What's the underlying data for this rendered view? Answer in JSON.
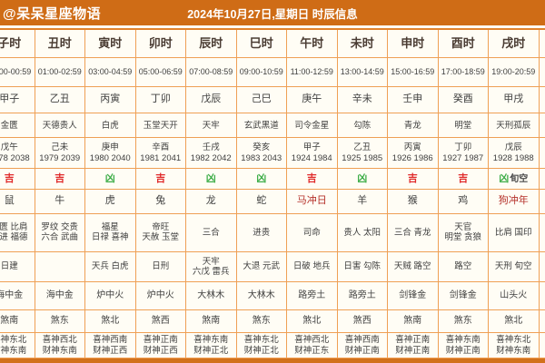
{
  "header": {
    "watermark": "@呆呆星座物语",
    "title": "2024年10月27日,星期日 时辰信息"
  },
  "colors": {
    "header_bg": "#cf6c16",
    "grid_border": "#efa055",
    "cell_bg": "#fffdf5",
    "auspicious_red": "#e02a2a",
    "inauspicious_green": "#3fae49",
    "clash_text_red": "#b5312a",
    "text_dark": "#3f3f3f"
  },
  "row_meanings": [
    "hour-name",
    "time-range",
    "hour-pillar",
    "duty-star",
    "clash-pillar-years",
    "luck",
    "zodiac",
    "auspicious-gods",
    "inauspicious-gods",
    "nayin-element",
    "sha-direction",
    "gods-directions"
  ],
  "columns": [
    {
      "hour": "子时",
      "time": "00:00-00:59",
      "ganzhi": "甲子",
      "star": "金匮",
      "clash": [
        "戊午",
        "1978 2038"
      ],
      "luck": {
        "text": "吉",
        "type": "good",
        "suffix": ""
      },
      "zodiac": {
        "text": "鼠",
        "clash": false
      },
      "jishen": [
        "金匮 比肩",
        "大进 福德"
      ],
      "xiongshen": [
        "日建"
      ],
      "nayin": "海中金",
      "sha": "煞南",
      "dir": [
        "喜神东北",
        "财神东南"
      ]
    },
    {
      "hour": "丑时",
      "time": "01:00-02:59",
      "ganzhi": "乙丑",
      "star": "天德贵人",
      "clash": [
        "己未",
        "1979 2039"
      ],
      "luck": {
        "text": "吉",
        "type": "good",
        "suffix": ""
      },
      "zodiac": {
        "text": "牛",
        "clash": false
      },
      "jishen": [
        "罗纹 交贵",
        "六合 武曲"
      ],
      "xiongshen": [
        ""
      ],
      "nayin": "海中金",
      "sha": "煞东",
      "dir": [
        "喜神西北",
        "财神东南"
      ]
    },
    {
      "hour": "寅时",
      "time": "03:00-04:59",
      "ganzhi": "丙寅",
      "star": "白虎",
      "clash": [
        "庚申",
        "1980 2040"
      ],
      "luck": {
        "text": "凶",
        "type": "bad",
        "suffix": ""
      },
      "zodiac": {
        "text": "虎",
        "clash": false
      },
      "jishen": [
        "福星",
        "日禄 喜神"
      ],
      "xiongshen": [
        "天兵 白虎"
      ],
      "nayin": "炉中火",
      "sha": "煞北",
      "dir": [
        "喜神西南",
        "财神正西"
      ]
    },
    {
      "hour": "卯时",
      "time": "05:00-06:59",
      "ganzhi": "丁卯",
      "star": "玉堂天开",
      "clash": [
        "辛酉",
        "1981 2041"
      ],
      "luck": {
        "text": "吉",
        "type": "good",
        "suffix": ""
      },
      "zodiac": {
        "text": "兔",
        "clash": false
      },
      "jishen": [
        "帝旺",
        "天赦 玉堂"
      ],
      "xiongshen": [
        "日刑"
      ],
      "nayin": "炉中火",
      "sha": "煞西",
      "dir": [
        "喜神正南",
        "财神正西"
      ]
    },
    {
      "hour": "辰时",
      "time": "07:00-08:59",
      "ganzhi": "戊辰",
      "star": "天牢",
      "clash": [
        "壬戌",
        "1982 2042"
      ],
      "luck": {
        "text": "凶",
        "type": "bad",
        "suffix": ""
      },
      "zodiac": {
        "text": "龙",
        "clash": false
      },
      "jishen": [
        "三合"
      ],
      "xiongshen": [
        "天牢",
        "六戊 雷兵"
      ],
      "nayin": "大林木",
      "sha": "煞南",
      "dir": [
        "喜神东南",
        "财神正北"
      ]
    },
    {
      "hour": "巳时",
      "time": "09:00-10:59",
      "ganzhi": "己巳",
      "star": "玄武黑道",
      "clash": [
        "癸亥",
        "1983 2043"
      ],
      "luck": {
        "text": "凶",
        "type": "bad",
        "suffix": ""
      },
      "zodiac": {
        "text": "蛇",
        "clash": false
      },
      "jishen": [
        "进贵"
      ],
      "xiongshen": [
        "大退 元武"
      ],
      "nayin": "大林木",
      "sha": "煞东",
      "dir": [
        "喜神东北",
        "财神正北"
      ]
    },
    {
      "hour": "午时",
      "time": "11:00-12:59",
      "ganzhi": "庚午",
      "star": "司令金星",
      "clash": [
        "甲子",
        "1924 1984"
      ],
      "luck": {
        "text": "吉",
        "type": "good",
        "suffix": ""
      },
      "zodiac": {
        "text": "马冲日",
        "clash": true
      },
      "jishen": [
        "司命"
      ],
      "xiongshen": [
        "日破 地兵"
      ],
      "nayin": "路旁土",
      "sha": "煞北",
      "dir": [
        "喜神西北",
        "财神正东"
      ]
    },
    {
      "hour": "未时",
      "time": "13:00-14:59",
      "ganzhi": "辛未",
      "star": "勾陈",
      "clash": [
        "乙丑",
        "1925 1985"
      ],
      "luck": {
        "text": "凶",
        "type": "bad",
        "suffix": ""
      },
      "zodiac": {
        "text": "羊",
        "clash": false
      },
      "jishen": [
        "贵人 太阳"
      ],
      "xiongshen": [
        "日害 勾陈"
      ],
      "nayin": "路旁土",
      "sha": "煞西",
      "dir": [
        "喜神西南",
        "财神正南"
      ]
    },
    {
      "hour": "申时",
      "time": "15:00-16:59",
      "ganzhi": "壬申",
      "star": "青龙",
      "clash": [
        "丙寅",
        "1926 1986"
      ],
      "luck": {
        "text": "吉",
        "type": "good",
        "suffix": ""
      },
      "zodiac": {
        "text": "猴",
        "clash": false
      },
      "jishen": [
        "三合 青龙"
      ],
      "xiongshen": [
        "天贼 路空"
      ],
      "nayin": "剑锋金",
      "sha": "煞南",
      "dir": [
        "喜神正南",
        "财神正南"
      ]
    },
    {
      "hour": "酉时",
      "time": "17:00-18:59",
      "ganzhi": "癸酉",
      "star": "明堂",
      "clash": [
        "丁卯",
        "1927 1987"
      ],
      "luck": {
        "text": "吉",
        "type": "good",
        "suffix": ""
      },
      "zodiac": {
        "text": "鸡",
        "clash": false
      },
      "jishen": [
        "天官",
        "明堂 贪狼"
      ],
      "xiongshen": [
        "路空"
      ],
      "nayin": "剑锋金",
      "sha": "煞东",
      "dir": [
        "喜神东南",
        "财神正南"
      ]
    },
    {
      "hour": "戌时",
      "time": "19:00-20:59",
      "ganzhi": "甲戌",
      "star": "天刑孤辰",
      "clash": [
        "戊辰",
        "1928 1988"
      ],
      "luck": {
        "text": "凶",
        "type": "bad",
        "suffix": "旬空"
      },
      "zodiac": {
        "text": "狗冲年",
        "clash": true
      },
      "jishen": [
        "比肩 国印"
      ],
      "xiongshen": [
        "天刑 旬空"
      ],
      "nayin": "山头火",
      "sha": "煞北",
      "dir": [
        "喜神东北",
        "财神东南"
      ]
    },
    {
      "hour": "",
      "time": "",
      "ganzhi": "",
      "star": "",
      "clash": [
        ""
      ],
      "luck": {
        "text": "",
        "type": "good",
        "suffix": ""
      },
      "zodiac": {
        "text": "",
        "clash": false
      },
      "jishen": [
        ""
      ],
      "xiongshen": [
        ""
      ],
      "nayin": "",
      "sha": "",
      "dir": [
        ""
      ]
    }
  ]
}
